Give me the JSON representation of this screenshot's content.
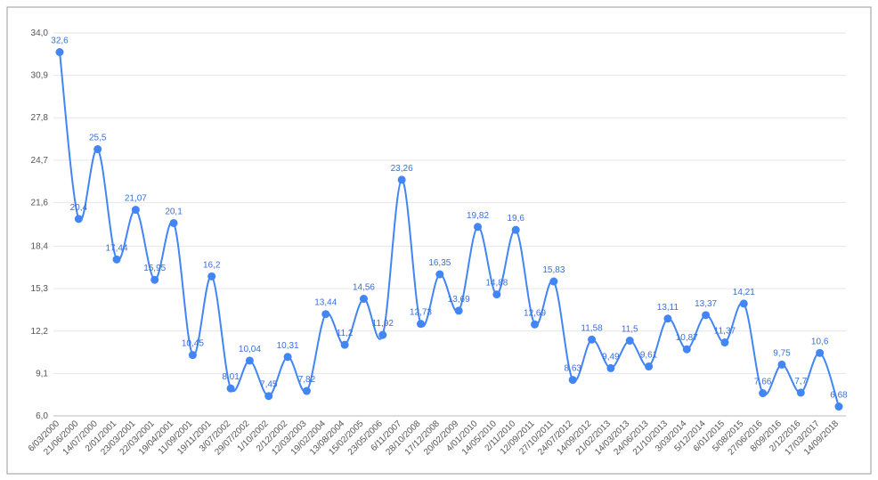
{
  "chart_data": {
    "type": "line",
    "categories": [
      "6/03/2000",
      "21/06/2000",
      "14/07/2000",
      "2/01/2001",
      "23/03/2001",
      "22/03/2001",
      "19/04/2001",
      "11/09/2001",
      "19/11/2001",
      "3/07/2002",
      "29/07/2002",
      "1/10/2002",
      "2/12/2002",
      "12/03/2003",
      "19/02/2004",
      "13/08/2004",
      "15/02/2005",
      "23/05/2006",
      "6/11/2007",
      "28/10/2008",
      "17/12/2008",
      "20/02/2009",
      "4/01/2010",
      "14/05/2010",
      "2/11/2010",
      "12/09/2011",
      "27/10/2011",
      "24/07/2012",
      "14/09/2012",
      "21/02/2013",
      "14/03/2013",
      "24/06/2013",
      "21/10/2013",
      "3/03/2014",
      "5/12/2014",
      "6/01/2015",
      "5/08/2015",
      "27/06/2016",
      "8/09/2016",
      "2/12/2016",
      "17/03/2017",
      "14/09/2018"
    ],
    "series": [
      {
        "color": "#4285f4",
        "values": [
          32.6,
          20.4,
          25.5,
          17.44,
          21.07,
          15.95,
          20.1,
          10.45,
          16.2,
          8.01,
          10.04,
          7.45,
          10.31,
          7.82,
          13.44,
          11.2,
          14.56,
          11.92,
          23.26,
          12.73,
          16.35,
          13.69,
          19.82,
          14.88,
          19.6,
          12.69,
          15.83,
          8.63,
          11.58,
          9.49,
          11.5,
          9.61,
          13.11,
          10.87,
          13.37,
          11.37,
          14.21,
          7.66,
          9.75,
          7.7,
          10.6,
          6.68
        ],
        "value_labels": [
          "32,6",
          "20,4",
          "25,5",
          "17,44",
          "21,07",
          "15,95",
          "20,1",
          "10,45",
          "16,2",
          "8,01",
          "10,04",
          "7,45",
          "10,31",
          "7,82",
          "13,44",
          "11,2",
          "14,56",
          "11,92",
          "23,26",
          "12,73",
          "16,35",
          "13,69",
          "19,82",
          "14,88",
          "19,6",
          "12,69",
          "15,83",
          "8,63",
          "11,58",
          "9,49",
          "11,5",
          "9,61",
          "13,11",
          "10,87",
          "13,37",
          "11,37",
          "14,21",
          "7,66",
          "9,75",
          "7,7",
          "10,6",
          "6,68"
        ]
      }
    ],
    "ylim": [
      6,
      34
    ],
    "yticks": [
      {
        "value": 6,
        "label": "6,0"
      },
      {
        "value": 9.1,
        "label": "9,1"
      },
      {
        "value": 12.2,
        "label": "12,2"
      },
      {
        "value": 15.3,
        "label": "15,3"
      },
      {
        "value": 18.4,
        "label": "18,4"
      },
      {
        "value": 21.6,
        "label": "21,6"
      },
      {
        "value": 24.7,
        "label": "24,7"
      },
      {
        "value": 27.8,
        "label": "27,8"
      },
      {
        "value": 30.9,
        "label": "30,9"
      },
      {
        "value": 34,
        "label": "34,0"
      }
    ],
    "grid": true
  }
}
